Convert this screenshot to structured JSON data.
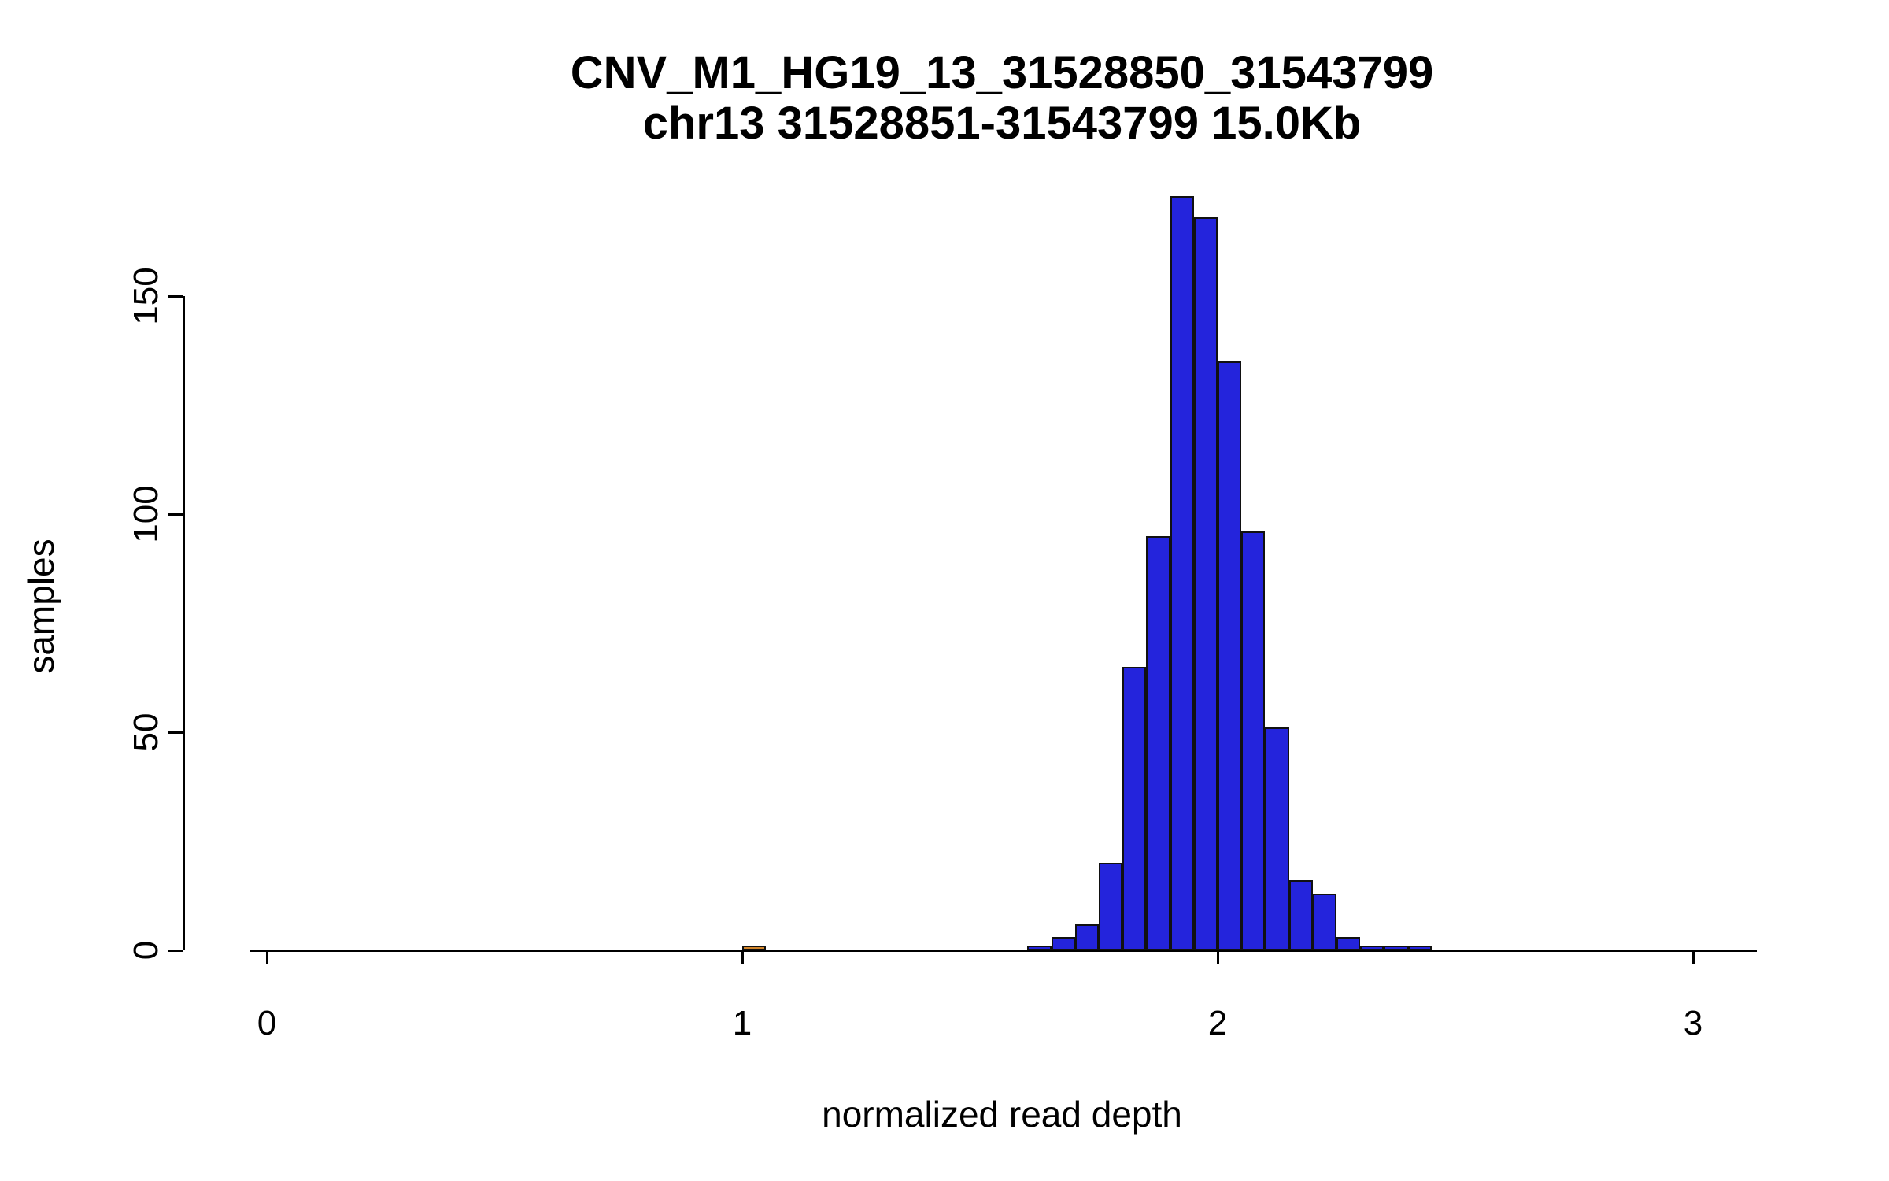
{
  "chart_data": {
    "type": "bar",
    "subtype": "histogram",
    "title": "CNV_M1_HG19_13_31528850_31543799",
    "subtitle": "chr13 31528851-31543799 15.0Kb",
    "xlabel": "normalized read depth",
    "ylabel": "samples",
    "x_ticks": [
      0,
      1,
      2,
      3
    ],
    "y_ticks": [
      0,
      50,
      100,
      150
    ],
    "xlim": [
      -0.04,
      3.13
    ],
    "ylim": [
      0,
      175
    ],
    "grid": false,
    "legend": "none",
    "bin_width": 0.05,
    "default_bar_color": "#2424DC",
    "bar_border_color": "#111111",
    "highlight_bar_color": "#D2852A",
    "bars": [
      {
        "x": 1.0,
        "count": 1,
        "color": "#D2852A"
      },
      {
        "x": 1.6,
        "count": 1
      },
      {
        "x": 1.65,
        "count": 3
      },
      {
        "x": 1.7,
        "count": 6
      },
      {
        "x": 1.75,
        "count": 20
      },
      {
        "x": 1.8,
        "count": 65
      },
      {
        "x": 1.85,
        "count": 95
      },
      {
        "x": 1.9,
        "count": 173
      },
      {
        "x": 1.95,
        "count": 168
      },
      {
        "x": 2.0,
        "count": 135
      },
      {
        "x": 2.05,
        "count": 96
      },
      {
        "x": 2.1,
        "count": 51
      },
      {
        "x": 2.15,
        "count": 16
      },
      {
        "x": 2.2,
        "count": 13
      },
      {
        "x": 2.25,
        "count": 3
      },
      {
        "x": 2.3,
        "count": 1
      },
      {
        "x": 2.35,
        "count": 1
      },
      {
        "x": 2.4,
        "count": 1
      }
    ]
  }
}
